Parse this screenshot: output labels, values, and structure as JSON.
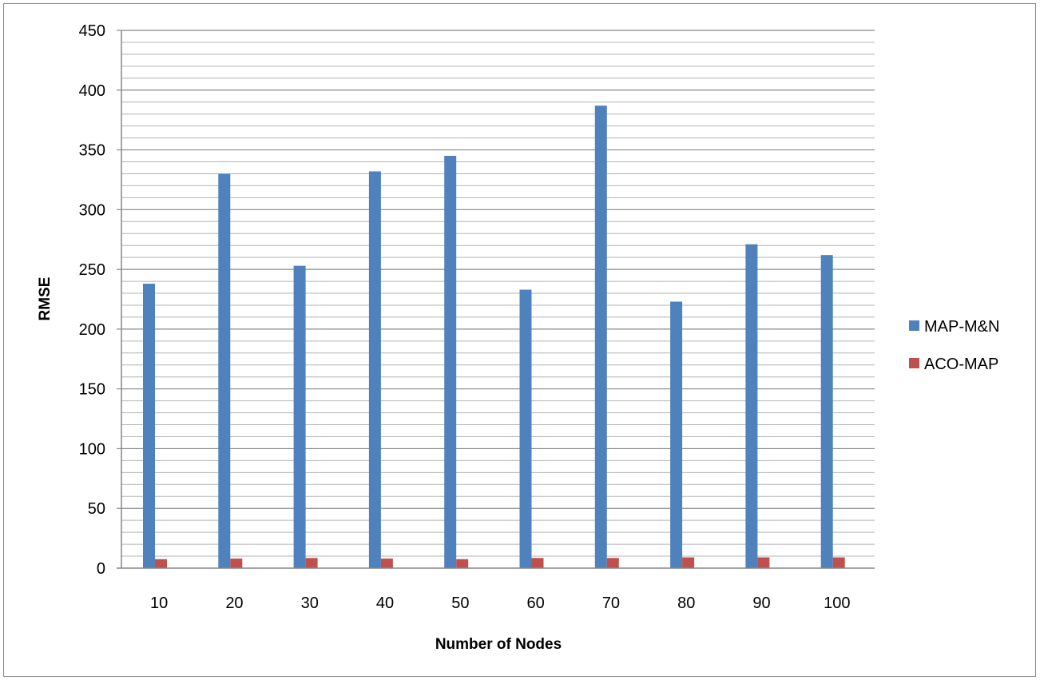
{
  "chart_data": {
    "type": "bar",
    "title": "",
    "xlabel": "Number of Nodes",
    "ylabel": "RMSE",
    "categories": [
      "10",
      "20",
      "30",
      "40",
      "50",
      "60",
      "70",
      "80",
      "90",
      "100"
    ],
    "series": [
      {
        "name": "MAP-M&N",
        "color": "#4F81BD",
        "values": [
          238,
          330,
          253,
          332,
          345,
          233,
          387,
          223,
          271,
          262
        ]
      },
      {
        "name": "ACO-MAP",
        "color": "#C0504D",
        "values": [
          7.5,
          8,
          8.5,
          8,
          7.5,
          8.5,
          8.5,
          9,
          9,
          9
        ]
      }
    ],
    "ylim": [
      0,
      450
    ],
    "yticks": [
      0,
      50,
      100,
      150,
      200,
      250,
      300,
      350,
      400,
      450
    ],
    "minor_grid_step": 10,
    "grid": true,
    "legend_position": "right"
  }
}
